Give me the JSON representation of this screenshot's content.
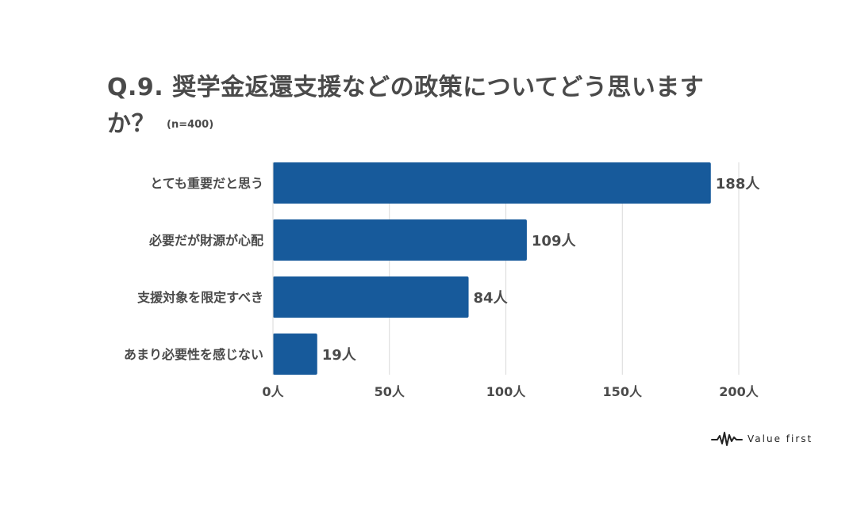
{
  "title": {
    "main": "Q.9. 奨学金返還支援などの政策についてどう思いますか？",
    "sample": "(n=400)"
  },
  "chart_data": {
    "type": "bar",
    "orientation": "horizontal",
    "categories": [
      "とても重要だと思う",
      "必要だが財源が心配",
      "支援対象を限定すべき",
      "あまり必要性を感じない"
    ],
    "values": [
      188,
      109,
      84,
      19
    ],
    "value_labels": [
      "188人",
      "109人",
      "84人",
      "19人"
    ],
    "xlim": [
      0,
      200
    ],
    "x_ticks": [
      0,
      50,
      100,
      150,
      200
    ],
    "x_tick_labels": [
      "0人",
      "50人",
      "100人",
      "150人",
      "200人"
    ],
    "grid": true,
    "bar_color": "#175a9b",
    "grid_color": "#d9d9d9"
  },
  "brand": {
    "name": "Value first"
  }
}
